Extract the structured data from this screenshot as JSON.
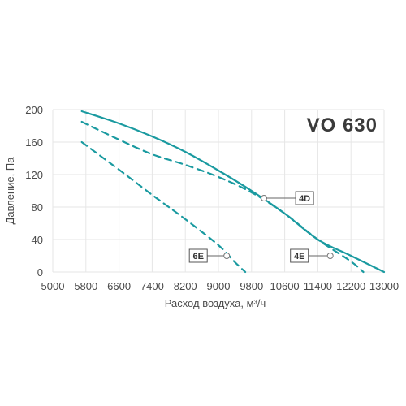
{
  "chart_data": {
    "type": "line",
    "title": "VO 630",
    "xlabel": "Расход воздуха, м³/ч",
    "ylabel": "Давление, Па",
    "xlim": [
      5000,
      13000
    ],
    "ylim": [
      0,
      200
    ],
    "x_ticks": [
      5000,
      5800,
      6600,
      7400,
      8200,
      9000,
      9800,
      10600,
      11400,
      12200,
      13000
    ],
    "x_tick_labels": [
      "5000",
      "5800",
      "6600",
      "7400",
      "8200",
      "9000",
      "9800",
      "10600",
      "11400",
      "12200",
      "13000"
    ],
    "y_ticks": [
      0,
      40,
      80,
      120,
      160,
      200
    ],
    "y_tick_labels": [
      "0",
      "40",
      "80",
      "120",
      "160",
      "200"
    ],
    "grid": true,
    "line_color": "#1a9aa0",
    "series": [
      {
        "name": "4D",
        "style": "solid",
        "points": [
          [
            5700,
            198
          ],
          [
            6600,
            183
          ],
          [
            7400,
            167
          ],
          [
            8200,
            148
          ],
          [
            9000,
            125
          ],
          [
            9800,
            100
          ],
          [
            10600,
            72
          ],
          [
            11400,
            40
          ],
          [
            12200,
            20
          ],
          [
            13000,
            0
          ]
        ],
        "marker": [
          10100,
          91
        ]
      },
      {
        "name": "4E",
        "style": "dashed",
        "points": [
          [
            5700,
            185
          ],
          [
            6600,
            163
          ],
          [
            7400,
            145
          ],
          [
            8200,
            132
          ],
          [
            9000,
            117
          ],
          [
            9800,
            98
          ],
          [
            10600,
            72
          ],
          [
            11400,
            40
          ],
          [
            12200,
            13
          ],
          [
            12500,
            0
          ]
        ],
        "marker": [
          11700,
          20
        ]
      },
      {
        "name": "6E",
        "style": "dashed",
        "points": [
          [
            5700,
            160
          ],
          [
            6600,
            126
          ],
          [
            7400,
            95
          ],
          [
            8200,
            65
          ],
          [
            9000,
            33
          ],
          [
            9400,
            12
          ],
          [
            9650,
            0
          ]
        ],
        "marker": [
          9200,
          20
        ]
      }
    ]
  }
}
